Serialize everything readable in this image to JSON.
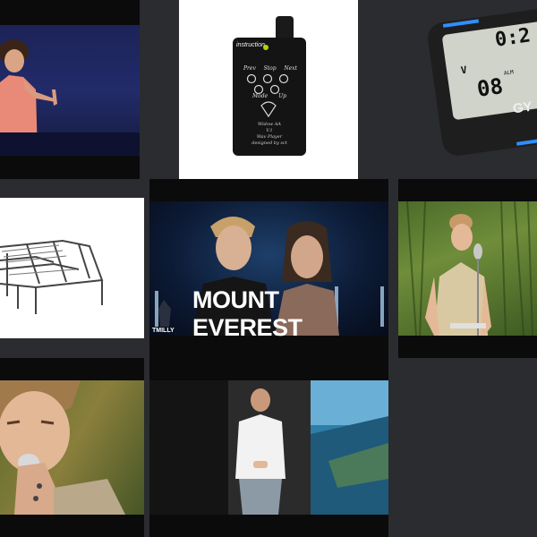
{
  "tiles": {
    "talk": {
      "label": ""
    },
    "device": {
      "brand": "instruction",
      "buttons_top": [
        "Prev",
        "Stop",
        "Next"
      ],
      "buttons_bottom": [
        "Mode",
        "Up"
      ],
      "line1": "Widow AA",
      "line2": "V.1",
      "line3": "Wav Player",
      "line4": "designed by sct"
    },
    "timer": {
      "digits_top": "0:2",
      "digits_bottom": "08",
      "small": "V",
      "badge": "ALM",
      "brand": "GY"
    },
    "bed": {
      "label": ""
    },
    "dance": {
      "caption": "MOUNT EVEREST",
      "logo": "TMILLY"
    },
    "singer_outdoor": {
      "label": ""
    },
    "singer_close": {
      "label": ""
    },
    "speaker": {
      "label": ""
    }
  },
  "colors": {
    "background": "#2a2c2f",
    "tile_dark": "#0b0b0c",
    "timer_accent": "#2f8fff"
  }
}
